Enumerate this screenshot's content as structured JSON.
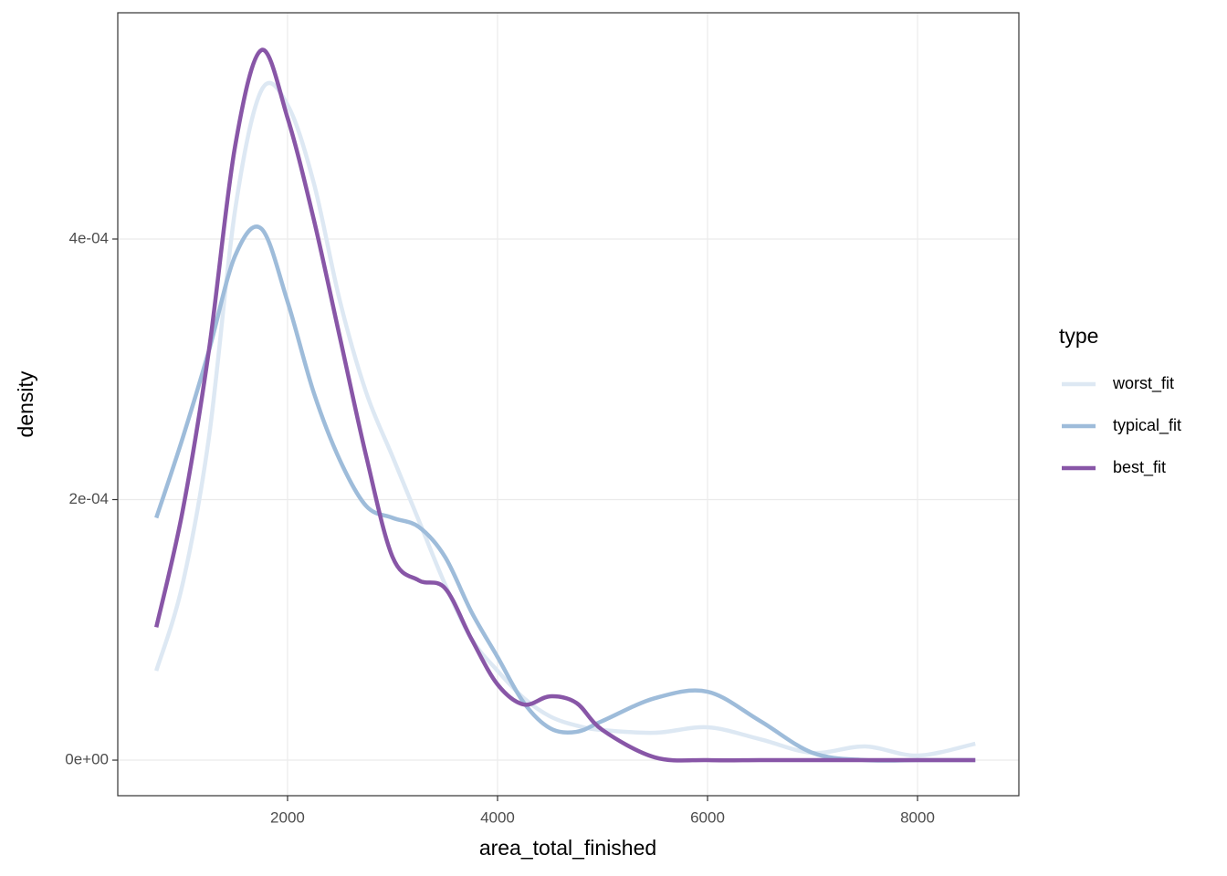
{
  "chart_data": {
    "type": "line",
    "x_label": "area_total_finished",
    "y_label": "density",
    "legend_title": "type",
    "legend_position": "right",
    "grid": true,
    "x": [
      750,
      1000,
      1250,
      1500,
      1750,
      2000,
      2250,
      2500,
      2750,
      3000,
      3250,
      3500,
      3750,
      4000,
      4250,
      4500,
      4750,
      5000,
      5500,
      6000,
      6500,
      7000,
      7500,
      8000,
      8550
    ],
    "series": [
      {
        "name": "worst_fit",
        "color": "#dde8f3",
        "values": [
          6.86e-05,
          0.000135,
          0.000247,
          0.000422,
          0.000514,
          0.000503,
          0.000443,
          0.000352,
          0.000282,
          0.000233,
          0.000184,
          0.000135,
          9.32e-05,
          6.86e-05,
          4.76e-05,
          3.36e-05,
          2.66e-05,
          2.31e-05,
          2.1e-05,
          2.52e-05,
          1.61e-05,
          5.6e-06,
          1.05e-05,
          3.5e-06,
          1.26e-05
        ]
      },
      {
        "name": "typical_fit",
        "color": "#9ebcda",
        "values": [
          0.000186,
          0.000247,
          0.000314,
          0.000387,
          0.000408,
          0.000352,
          0.000282,
          0.00023,
          0.000195,
          0.000186,
          0.000179,
          0.000156,
          0.000114,
          7.92e-05,
          4.41e-05,
          2.45e-05,
          2.17e-05,
          3.01e-05,
          4.76e-05,
          5.25e-05,
          3.01e-05,
          5.6e-06,
          0,
          0,
          0
        ]
      },
      {
        "name": "best_fit",
        "color": "#8856a7",
        "values": [
          0.000102,
          0.000191,
          0.000314,
          0.000471,
          0.000545,
          0.000493,
          0.000415,
          0.000324,
          0.000233,
          0.000156,
          0.000138,
          0.000132,
          9.32e-05,
          5.81e-05,
          4.27e-05,
          4.9e-05,
          4.4e-05,
          2.31e-05,
          2.1e-06,
          0,
          0,
          0,
          0,
          0,
          0
        ]
      }
    ],
    "xlim": [
      383,
      8965
    ],
    "xticks": [
      2000,
      4000,
      6000,
      8000
    ],
    "ylim": [
      -2.73e-05,
      0.0005737
    ],
    "yticks": [
      {
        "value": 0,
        "label": "0e+00"
      },
      {
        "value": 0.0002,
        "label": "2e-04"
      },
      {
        "value": 0.0004,
        "label": "4e-04"
      }
    ]
  }
}
